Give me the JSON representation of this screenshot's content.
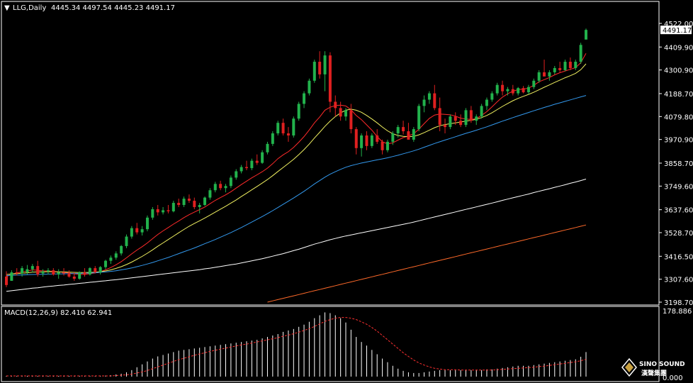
{
  "header": {
    "symbol": "LLG,Daily",
    "ohlc": "4445.34 4497.54 4445.23 4491.17"
  },
  "price_axis": {
    "ticks": [
      "4522.00",
      "4409.90",
      "4300.90",
      "4188.70",
      "4079.80",
      "3970.90",
      "3858.70",
      "3749.60",
      "3637.60",
      "3528.70",
      "3416.50",
      "3307.60",
      "3198.70"
    ],
    "current_price": "4491.17"
  },
  "macd": {
    "label": "MACD(12,26,9) 82.410 62.941",
    "top_tick": "178.886",
    "bottom_tick": "0.000"
  },
  "logo": {
    "name": "SINO SOUND",
    "subtitle": "漢聲集團"
  },
  "colors": {
    "background": "#000000",
    "bull_candle": "#22b24c",
    "bear_candle": "#e02020",
    "ma_red": "#ff2a2a",
    "ma_yellow": "#f0f060",
    "ma_blue": "#3399ee",
    "ma_white": "#ffffff",
    "ma_orange": "#ff6a2a",
    "macd_hist": "#ffffff",
    "macd_signal": "#ff3030"
  },
  "chart_data": {
    "type": "candlestick",
    "title": "LLG,Daily",
    "ylim": [
      3198.7,
      4580
    ],
    "candles": [
      [
        3320,
        3345,
        3270,
        3280
      ],
      [
        3300,
        3350,
        3300,
        3340
      ],
      [
        3340,
        3360,
        3325,
        3335
      ],
      [
        3335,
        3370,
        3320,
        3360
      ],
      [
        3340,
        3375,
        3330,
        3355
      ],
      [
        3355,
        3380,
        3340,
        3370
      ],
      [
        3370,
        3395,
        3320,
        3330
      ],
      [
        3335,
        3355,
        3320,
        3345
      ],
      [
        3345,
        3360,
        3330,
        3350
      ],
      [
        3350,
        3360,
        3325,
        3330
      ],
      [
        3330,
        3355,
        3310,
        3340
      ],
      [
        3340,
        3360,
        3325,
        3335
      ],
      [
        3335,
        3350,
        3315,
        3320
      ],
      [
        3320,
        3340,
        3300,
        3310
      ],
      [
        3310,
        3345,
        3305,
        3340
      ],
      [
        3340,
        3360,
        3320,
        3330
      ],
      [
        3330,
        3365,
        3325,
        3360
      ],
      [
        3360,
        3370,
        3335,
        3340
      ],
      [
        3340,
        3370,
        3330,
        3365
      ],
      [
        3365,
        3400,
        3355,
        3395
      ],
      [
        3395,
        3420,
        3380,
        3410
      ],
      [
        3410,
        3440,
        3400,
        3430
      ],
      [
        3430,
        3470,
        3420,
        3465
      ],
      [
        3465,
        3520,
        3455,
        3510
      ],
      [
        3510,
        3560,
        3500,
        3550
      ],
      [
        3550,
        3575,
        3520,
        3530
      ],
      [
        3530,
        3560,
        3515,
        3545
      ],
      [
        3545,
        3610,
        3535,
        3600
      ],
      [
        3600,
        3650,
        3590,
        3640
      ],
      [
        3640,
        3660,
        3610,
        3625
      ],
      [
        3625,
        3650,
        3615,
        3635
      ],
      [
        3635,
        3660,
        3620,
        3630
      ],
      [
        3630,
        3680,
        3625,
        3670
      ],
      [
        3670,
        3690,
        3650,
        3660
      ],
      [
        3660,
        3700,
        3650,
        3690
      ],
      [
        3690,
        3710,
        3670,
        3680
      ],
      [
        3680,
        3695,
        3640,
        3650
      ],
      [
        3650,
        3670,
        3620,
        3660
      ],
      [
        3660,
        3700,
        3655,
        3695
      ],
      [
        3695,
        3740,
        3685,
        3730
      ],
      [
        3730,
        3770,
        3720,
        3760
      ],
      [
        3760,
        3775,
        3730,
        3740
      ],
      [
        3740,
        3760,
        3720,
        3750
      ],
      [
        3750,
        3800,
        3740,
        3790
      ],
      [
        3790,
        3830,
        3780,
        3820
      ],
      [
        3820,
        3850,
        3810,
        3840
      ],
      [
        3840,
        3870,
        3825,
        3835
      ],
      [
        3835,
        3880,
        3825,
        3870
      ],
      [
        3870,
        3900,
        3850,
        3860
      ],
      [
        3860,
        3920,
        3855,
        3910
      ],
      [
        3910,
        3960,
        3900,
        3950
      ],
      [
        3950,
        4010,
        3940,
        4000
      ],
      [
        4000,
        4060,
        3990,
        4050
      ],
      [
        4050,
        4070,
        3990,
        4000
      ],
      [
        4000,
        4030,
        3960,
        3990
      ],
      [
        3990,
        4080,
        3980,
        4070
      ],
      [
        4070,
        4150,
        4060,
        4140
      ],
      [
        4140,
        4200,
        4120,
        4190
      ],
      [
        4190,
        4260,
        4180,
        4250
      ],
      [
        4250,
        4350,
        4240,
        4340
      ],
      [
        4340,
        4390,
        4260,
        4280
      ],
      [
        4280,
        4390,
        4200,
        4370
      ],
      [
        4370,
        4385,
        4100,
        4150
      ],
      [
        4150,
        4180,
        4080,
        4120
      ],
      [
        4120,
        4150,
        4060,
        4080
      ],
      [
        4080,
        4120,
        4060,
        4110
      ],
      [
        4110,
        4140,
        4000,
        4020
      ],
      [
        4020,
        4030,
        3900,
        3930
      ],
      [
        3930,
        4000,
        3890,
        3990
      ],
      [
        3990,
        4010,
        3920,
        3940
      ],
      [
        3940,
        4000,
        3930,
        3990
      ],
      [
        3990,
        4020,
        3950,
        3960
      ],
      [
        3960,
        3970,
        3900,
        3920
      ],
      [
        3920,
        3970,
        3910,
        3960
      ],
      [
        3960,
        4010,
        3945,
        4000
      ],
      [
        4000,
        4040,
        3980,
        4030
      ],
      [
        4030,
        4060,
        3995,
        4010
      ],
      [
        4010,
        4050,
        3980,
        3970
      ],
      [
        3970,
        4030,
        3960,
        4020
      ],
      [
        4020,
        4140,
        4010,
        4130
      ],
      [
        4130,
        4180,
        4100,
        4160
      ],
      [
        4160,
        4200,
        4140,
        4190
      ],
      [
        4190,
        4230,
        4110,
        4120
      ],
      [
        4120,
        4170,
        4010,
        4040
      ],
      [
        4040,
        4070,
        4000,
        4030
      ],
      [
        4030,
        4090,
        4020,
        4080
      ],
      [
        4080,
        4100,
        4040,
        4060
      ],
      [
        4060,
        4090,
        4030,
        4040
      ],
      [
        4040,
        4120,
        4030,
        4110
      ],
      [
        4110,
        4130,
        4050,
        4060
      ],
      [
        4060,
        4090,
        4040,
        4080
      ],
      [
        4080,
        4140,
        4070,
        4130
      ],
      [
        4130,
        4170,
        4110,
        4160
      ],
      [
        4160,
        4200,
        4150,
        4190
      ],
      [
        4190,
        4240,
        4180,
        4230
      ],
      [
        4230,
        4250,
        4180,
        4200
      ],
      [
        4200,
        4220,
        4180,
        4210
      ],
      [
        4210,
        4230,
        4180,
        4190
      ],
      [
        4190,
        4220,
        4180,
        4215
      ],
      [
        4215,
        4225,
        4190,
        4195
      ],
      [
        4195,
        4230,
        4185,
        4220
      ],
      [
        4220,
        4260,
        4210,
        4250
      ],
      [
        4250,
        4300,
        4240,
        4290
      ],
      [
        4290,
        4350,
        4280,
        4270
      ],
      [
        4270,
        4300,
        4250,
        4290
      ],
      [
        4290,
        4320,
        4280,
        4310
      ],
      [
        4310,
        4340,
        4290,
        4300
      ],
      [
        4300,
        4350,
        4295,
        4340
      ],
      [
        4340,
        4360,
        4300,
        4310
      ],
      [
        4310,
        4350,
        4300,
        4340
      ],
      [
        4340,
        4430,
        4330,
        4420
      ],
      [
        4445.34,
        4497.54,
        4445.23,
        4491.17
      ]
    ],
    "moving_averages": [
      {
        "label": "fast",
        "color": "#ff2a2a",
        "values": [
          3320,
          3331,
          3338,
          3342,
          3346,
          3352,
          3350,
          3347,
          3347,
          3345,
          3342,
          3340,
          3337,
          3333,
          3331,
          3330,
          3334,
          3337,
          3343,
          3352,
          3363,
          3376,
          3391,
          3409,
          3428,
          3446,
          3462,
          3480,
          3500,
          3520,
          3537,
          3553,
          3569,
          3584,
          3600,
          3614,
          3626,
          3638,
          3650,
          3666,
          3682,
          3695,
          3708,
          3723,
          3740,
          3757,
          3773,
          3789,
          3803,
          3818,
          3835,
          3856,
          3880,
          3898,
          3913,
          3933,
          3958,
          3985,
          4016,
          4050,
          4078,
          4110,
          4124,
          4132,
          4134,
          4130,
          4112,
          4085,
          4065,
          4040,
          4015,
          3985,
          3960,
          3950,
          3955,
          3968,
          3980,
          3988,
          3998,
          4020,
          4046,
          4071,
          4087,
          4092,
          4090,
          4088,
          4082,
          4072,
          4068,
          4066,
          4070,
          4085,
          4103,
          4126,
          4150,
          4172,
          4188,
          4200,
          4208,
          4210,
          4215,
          4228,
          4245,
          4255,
          4265,
          4278,
          4288,
          4296,
          4304,
          4312,
          4335,
          4380
        ]
      },
      {
        "label": "mid",
        "color": "#f0f060",
        "values": [
          3330,
          3332,
          3334,
          3336,
          3338,
          3341,
          3342,
          3342,
          3343,
          3343,
          3342,
          3342,
          3341,
          3340,
          3339,
          3339,
          3340,
          3341,
          3343,
          3347,
          3352,
          3359,
          3367,
          3377,
          3389,
          3402,
          3416,
          3431,
          3447,
          3464,
          3480,
          3496,
          3512,
          3528,
          3544,
          3559,
          3572,
          3585,
          3598,
          3612,
          3626,
          3640,
          3654,
          3669,
          3684,
          3700,
          3716,
          3732,
          3748,
          3764,
          3781,
          3799,
          3819,
          3838,
          3857,
          3877,
          3899,
          3923,
          3949,
          3978,
          4005,
          4033,
          4058,
          4080,
          4097,
          4110,
          4115,
          4110,
          4100,
          4085,
          4068,
          4050,
          4030,
          4012,
          3998,
          3990,
          3986,
          3984,
          3986,
          3993,
          4003,
          4015,
          4027,
          4036,
          4042,
          4046,
          4050,
          4054,
          4058,
          4062,
          4067,
          4075,
          4085,
          4098,
          4113,
          4128,
          4142,
          4155,
          4166,
          4176,
          4185,
          4195,
          4207,
          4219,
          4230,
          4242,
          4253,
          4264,
          4274,
          4285,
          4302,
          4330
        ]
      },
      {
        "label": "long1",
        "color": "#3399ee",
        "values": [
          3325,
          3326,
          3327,
          3328,
          3329,
          3330,
          3331,
          3331,
          3332,
          3332,
          3333,
          3333,
          3334,
          3334,
          3335,
          3336,
          3337,
          3338,
          3340,
          3342,
          3345,
          3348,
          3352,
          3356,
          3361,
          3367,
          3373,
          3380,
          3387,
          3395,
          3403,
          3411,
          3420,
          3429,
          3438,
          3447,
          3456,
          3466,
          3476,
          3486,
          3496,
          3507,
          3518,
          3529,
          3541,
          3553,
          3566,
          3579,
          3592,
          3605,
          3619,
          3633,
          3648,
          3663,
          3678,
          3693,
          3709,
          3725,
          3742,
          3760,
          3776,
          3792,
          3806,
          3818,
          3829,
          3839,
          3847,
          3853,
          3859,
          3864,
          3869,
          3874,
          3879,
          3884,
          3890,
          3896,
          3903,
          3910,
          3917,
          3925,
          3934,
          3943,
          3952,
          3960,
          3968,
          3976,
          3984,
          3992,
          4000,
          4007,
          4015,
          4023,
          4031,
          4040,
          4049,
          4058,
          4066,
          4075,
          4083,
          4091,
          4099,
          4107,
          4115,
          4123,
          4130,
          4138,
          4145,
          4152,
          4159,
          4166,
          4173,
          4180
        ]
      },
      {
        "label": "long2",
        "color": "#ffffff",
        "values": [
          3250,
          3253,
          3256,
          3259,
          3262,
          3265,
          3267,
          3270,
          3273,
          3275,
          3278,
          3280,
          3283,
          3285,
          3288,
          3290,
          3293,
          3295,
          3298,
          3300,
          3303,
          3305,
          3308,
          3311,
          3314,
          3317,
          3320,
          3323,
          3326,
          3329,
          3332,
          3335,
          3338,
          3341,
          3344,
          3347,
          3350,
          3353,
          3357,
          3360,
          3364,
          3368,
          3372,
          3376,
          3380,
          3385,
          3390,
          3395,
          3400,
          3405,
          3411,
          3417,
          3423,
          3429,
          3436,
          3443,
          3450,
          3458,
          3466,
          3474,
          3481,
          3488,
          3495,
          3501,
          3507,
          3513,
          3518,
          3523,
          3528,
          3533,
          3538,
          3543,
          3548,
          3553,
          3558,
          3563,
          3568,
          3573,
          3579,
          3585,
          3591,
          3597,
          3603,
          3609,
          3615,
          3621,
          3627,
          3633,
          3639,
          3645,
          3651,
          3657,
          3663,
          3669,
          3675,
          3682,
          3688,
          3694,
          3700,
          3706,
          3712,
          3719,
          3725,
          3731,
          3737,
          3744,
          3750,
          3756,
          3763,
          3769,
          3776,
          3783
        ]
      }
    ],
    "orange_ma": {
      "start_index": 50,
      "start_value": 3198.7,
      "end_value": 3565
    },
    "macd_hist": [
      2,
      2,
      2,
      2,
      2,
      2,
      2,
      2,
      2,
      2,
      2,
      2,
      2,
      2,
      2,
      2,
      2,
      2,
      2,
      3,
      4,
      6,
      8,
      12,
      18,
      26,
      34,
      42,
      50,
      56,
      60,
      64,
      68,
      72,
      74,
      76,
      78,
      80,
      82,
      84,
      86,
      88,
      90,
      92,
      94,
      96,
      98,
      100,
      102,
      106,
      110,
      114,
      118,
      124,
      128,
      132,
      138,
      144,
      152,
      162,
      170,
      178,
      176,
      170,
      162,
      150,
      130,
      110,
      96,
      86,
      74,
      62,
      50,
      40,
      30,
      22,
      16,
      12,
      10,
      10,
      12,
      14,
      16,
      18,
      18,
      18,
      18,
      18,
      18,
      18,
      18,
      18,
      20,
      20,
      22,
      24,
      26,
      28,
      30,
      30,
      30,
      32,
      34,
      36,
      38,
      40,
      42,
      44,
      46,
      48,
      55,
      68
    ],
    "macd_signal": [
      2,
      2,
      2,
      2,
      2,
      2,
      2,
      2,
      2,
      2,
      2,
      2,
      2,
      2,
      2,
      2,
      2,
      2,
      2,
      2,
      2,
      3,
      4,
      5,
      7,
      10,
      13,
      17,
      22,
      27,
      32,
      37,
      42,
      47,
      51,
      55,
      59,
      63,
      66,
      70,
      73,
      76,
      79,
      82,
      85,
      88,
      90,
      93,
      96,
      99,
      102,
      105,
      108,
      112,
      115,
      119,
      123,
      128,
      133,
      139,
      146,
      153,
      158,
      162,
      164,
      164,
      162,
      158,
      152,
      145,
      136,
      126,
      114,
      102,
      90,
      78,
      66,
      56,
      46,
      38,
      32,
      27,
      23,
      21,
      19,
      19,
      19,
      18,
      18,
      18,
      18,
      18,
      18,
      18,
      19,
      20,
      21,
      22,
      23,
      24,
      25,
      26,
      28,
      29,
      31,
      33,
      35,
      37,
      39,
      41,
      44,
      48
    ],
    "macd_ylim": [
      0,
      178.886
    ]
  }
}
